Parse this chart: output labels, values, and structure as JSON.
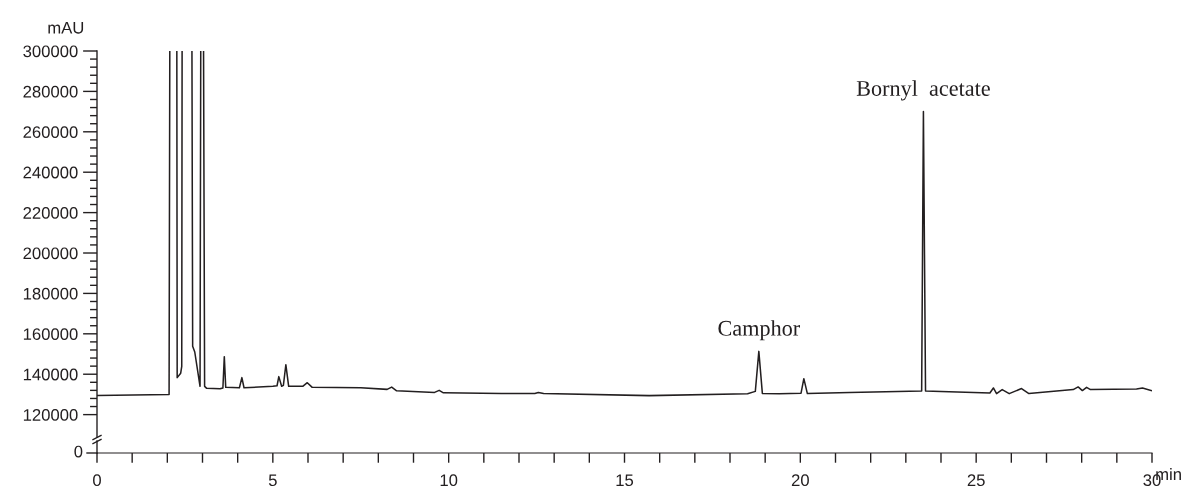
{
  "chart_data": {
    "type": "line",
    "ylabel": "mAU",
    "xlabel": "min",
    "grid": false,
    "marker": "none",
    "line_style": "solid",
    "xlim": [
      0,
      30
    ],
    "ylim": [
      101000,
      300000
    ],
    "xticks": [
      0,
      {
        "value": 1,
        "label": null
      },
      {
        "value": 2,
        "label": null
      },
      {
        "value": 3,
        "label": null
      },
      {
        "value": 4,
        "label": null
      },
      5,
      {
        "value": 6,
        "label": null
      },
      {
        "value": 7,
        "label": null
      },
      {
        "value": 8,
        "label": null
      },
      {
        "value": 9,
        "label": null
      },
      10,
      {
        "value": 11,
        "label": null
      },
      {
        "value": 12,
        "label": null
      },
      {
        "value": 13,
        "label": null
      },
      {
        "value": 14,
        "label": null
      },
      15,
      {
        "value": 16,
        "label": null
      },
      {
        "value": 17,
        "label": null
      },
      {
        "value": 18,
        "label": null
      },
      {
        "value": 19,
        "label": null
      },
      20,
      {
        "value": 21,
        "label": null
      },
      {
        "value": 22,
        "label": null
      },
      {
        "value": 23,
        "label": null
      },
      {
        "value": 24,
        "label": null
      },
      25,
      {
        "value": 26,
        "label": null
      },
      {
        "value": 27,
        "label": null
      },
      {
        "value": 28,
        "label": null
      },
      {
        "value": 29,
        "label": null
      },
      30
    ],
    "yticks": [
      120000,
      {
        "value": 124000,
        "label": null
      },
      {
        "value": 128000,
        "label": null
      },
      {
        "value": 132000,
        "label": null
      },
      {
        "value": 136000,
        "label": null
      },
      140000,
      {
        "value": 144000,
        "label": null
      },
      {
        "value": 148000,
        "label": null
      },
      {
        "value": 152000,
        "label": null
      },
      {
        "value": 156000,
        "label": null
      },
      160000,
      {
        "value": 164000,
        "label": null
      },
      {
        "value": 168000,
        "label": null
      },
      {
        "value": 172000,
        "label": null
      },
      {
        "value": 176000,
        "label": null
      },
      180000,
      {
        "value": 184000,
        "label": null
      },
      {
        "value": 188000,
        "label": null
      },
      {
        "value": 192000,
        "label": null
      },
      {
        "value": 196000,
        "label": null
      },
      200000,
      {
        "value": 204000,
        "label": null
      },
      {
        "value": 208000,
        "label": null
      },
      {
        "value": 212000,
        "label": null
      },
      {
        "value": 216000,
        "label": null
      },
      220000,
      {
        "value": 224000,
        "label": null
      },
      {
        "value": 228000,
        "label": null
      },
      {
        "value": 232000,
        "label": null
      },
      {
        "value": 236000,
        "label": null
      },
      240000,
      {
        "value": 244000,
        "label": null
      },
      {
        "value": 248000,
        "label": null
      },
      {
        "value": 252000,
        "label": null
      },
      {
        "value": 256000,
        "label": null
      },
      260000,
      {
        "value": 264000,
        "label": null
      },
      {
        "value": 268000,
        "label": null
      },
      {
        "value": 272000,
        "label": null
      },
      {
        "value": 276000,
        "label": null
      },
      280000,
      {
        "value": 284000,
        "label": null
      },
      {
        "value": 288000,
        "label": null
      },
      {
        "value": 292000,
        "label": null
      },
      {
        "value": 296000,
        "label": null
      },
      300000
    ],
    "x": [
      0,
      2.05,
      2.07,
      2.08,
      2.26,
      2.27,
      2.28,
      2.38,
      2.41,
      2.42,
      2.43,
      2.69,
      2.7,
      2.72,
      2.78,
      2.93,
      2.95,
      2.96,
      3.02,
      3.03,
      3.06,
      3.12,
      3.5,
      3.58,
      3.62,
      3.66,
      4.05,
      4.12,
      4.18,
      5.0,
      5.12,
      5.17,
      5.25,
      5.3,
      5.37,
      5.45,
      5.85,
      5.98,
      6.12,
      7.5,
      8.25,
      8.38,
      8.52,
      9.6,
      9.73,
      9.85,
      11.5,
      12.45,
      12.55,
      12.7,
      15.7,
      18.5,
      18.72,
      18.82,
      18.92,
      19.4,
      20.02,
      20.1,
      20.2,
      21.4,
      23.45,
      23.5,
      23.56,
      24.0,
      25.39,
      25.49,
      25.58,
      25.74,
      25.94,
      26.29,
      26.5,
      27.76,
      27.9,
      28.02,
      28.14,
      28.25,
      29.56,
      29.73,
      29.98
    ],
    "series": [
      {
        "color": "#231f20",
        "values": [
          129500,
          130000,
          300000,
          null,
          null,
          300000,
          138300,
          140500,
          143900,
          300000,
          null,
          null,
          300000,
          153800,
          151000,
          134000,
          300000,
          null,
          null,
          300000,
          134000,
          133000,
          132800,
          133200,
          148700,
          133500,
          133300,
          138300,
          133300,
          134000,
          134300,
          138800,
          134000,
          134500,
          144700,
          134000,
          134000,
          135800,
          133500,
          133300,
          132500,
          133600,
          131800,
          131000,
          132000,
          130800,
          130400,
          130500,
          131000,
          130500,
          129400,
          130300,
          131500,
          151300,
          130500,
          130300,
          130600,
          137800,
          130400,
          131000,
          131700,
          270000,
          131700,
          131400,
          130700,
          133200,
          130400,
          132400,
          130400,
          132900,
          130400,
          132400,
          133700,
          131900,
          133500,
          132400,
          132700,
          133200,
          131900
        ]
      }
    ],
    "annotations": [
      {
        "text": "Camphor",
        "x": 18.82,
        "y": 151300
      },
      {
        "text": "Bornyl  acetate",
        "x": 23.5,
        "y": 270000
      },
      "0"
    ]
  }
}
